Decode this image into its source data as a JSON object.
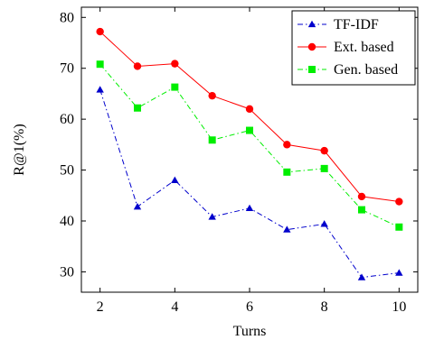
{
  "chart_data": {
    "type": "line",
    "xlabel": "Turns",
    "ylabel": "R@1(%)",
    "xlim": [
      1.5,
      10.5
    ],
    "ylim": [
      26,
      82
    ],
    "x_ticks": [
      "2",
      "4",
      "6",
      "8",
      "10"
    ],
    "y_ticks": [
      "30",
      "40",
      "50",
      "60",
      "70",
      "80"
    ],
    "x": [
      2,
      3,
      4,
      5,
      6,
      7,
      8,
      9,
      10
    ],
    "legend_position": "top-right",
    "grid": false,
    "series": [
      {
        "name": "TF-IDF",
        "values": [
          65.8,
          42.8,
          48.0,
          40.8,
          42.5,
          38.3,
          39.4,
          28.9,
          29.8
        ],
        "color": "#0000cc",
        "line_style": "dash-dot",
        "marker": "triangle"
      },
      {
        "name": "Ext. based",
        "values": [
          77.2,
          70.4,
          70.9,
          64.6,
          62.0,
          55.0,
          53.8,
          44.8,
          43.8
        ],
        "color": "#ff0000",
        "line_style": "solid",
        "marker": "circle"
      },
      {
        "name": "Gen. based",
        "values": [
          70.8,
          62.2,
          66.3,
          55.9,
          57.8,
          49.6,
          50.3,
          42.2,
          38.8
        ],
        "color": "#00ee00",
        "line_style": "dash-dot",
        "marker": "square"
      }
    ]
  }
}
